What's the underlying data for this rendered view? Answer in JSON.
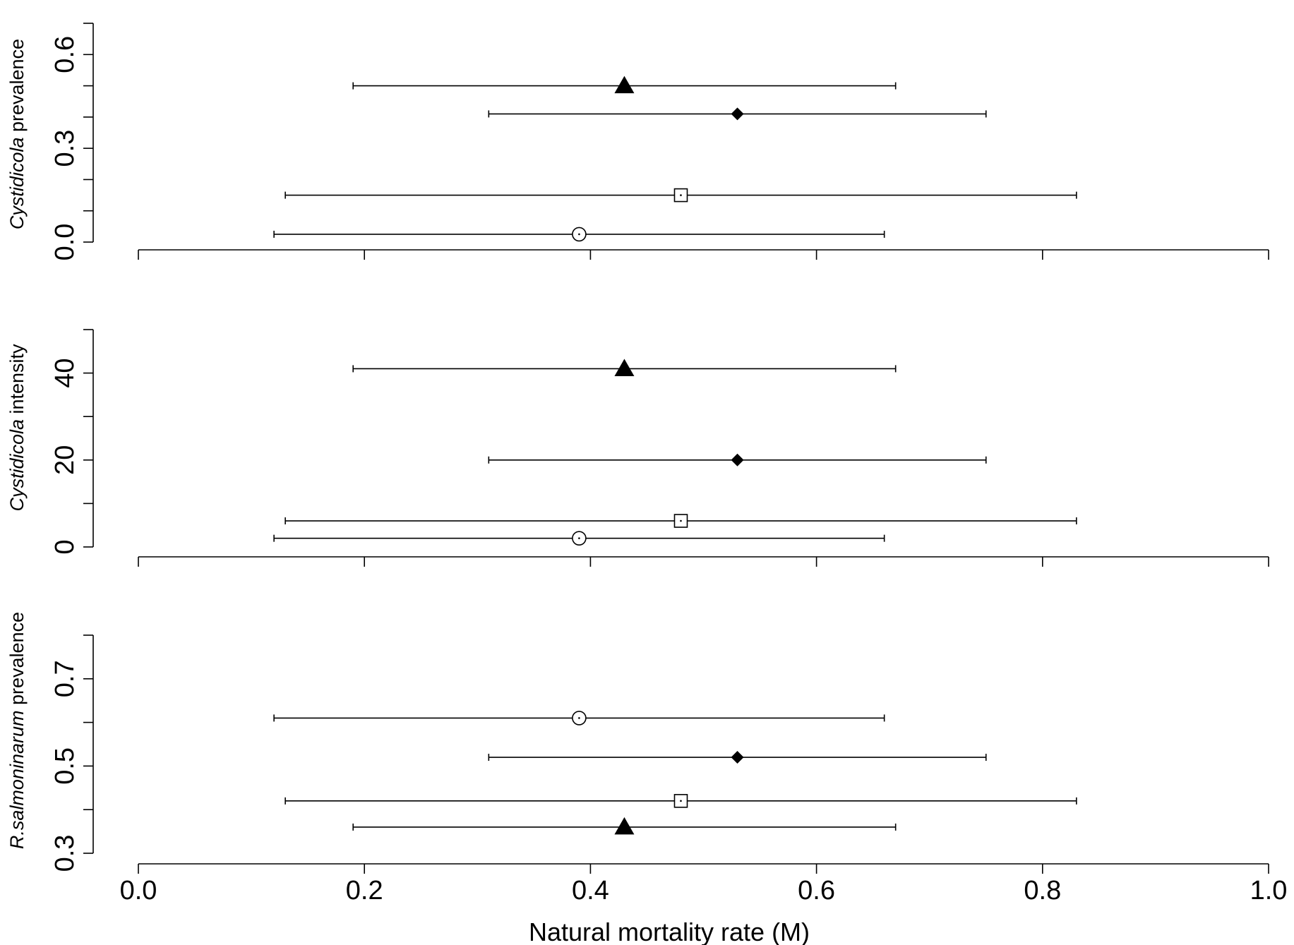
{
  "chart_data": {
    "type": "scatter",
    "xlabel": "Natural mortality rate (M)",
    "xlim": [
      0,
      1
    ],
    "x_ticks": [
      0.0,
      0.2,
      0.4,
      0.6,
      0.8,
      1.0
    ],
    "x_tick_labels": [
      "0.0",
      "0.2",
      "0.4",
      "0.6",
      "0.8",
      "1.0"
    ],
    "panels": [
      {
        "ylabel_italic": "Cystidicola",
        "ylabel_rest": " prevalence",
        "ylim": [
          0,
          0.7
        ],
        "y_ticks": [
          0.0,
          0.3,
          0.6
        ],
        "y_tick_labels": [
          "0.0",
          "0.3",
          "0.6"
        ],
        "y_minor_ticks": [
          0.1,
          0.2,
          0.4,
          0.5,
          0.7
        ],
        "points": [
          {
            "marker": "triangle",
            "x": 0.43,
            "xmin": 0.19,
            "xmax": 0.67,
            "y": 0.5
          },
          {
            "marker": "diamond",
            "x": 0.53,
            "xmin": 0.31,
            "xmax": 0.75,
            "y": 0.41
          },
          {
            "marker": "square",
            "x": 0.48,
            "xmin": 0.13,
            "xmax": 0.83,
            "y": 0.15
          },
          {
            "marker": "circle",
            "x": 0.39,
            "xmin": 0.12,
            "xmax": 0.66,
            "y": 0.025
          }
        ]
      },
      {
        "ylabel_italic": "Cystidicola",
        "ylabel_rest": " intensity",
        "ylim": [
          0,
          50
        ],
        "y_ticks": [
          0,
          20,
          40
        ],
        "y_tick_labels": [
          "0",
          "20",
          "40"
        ],
        "y_minor_ticks": [
          10,
          30,
          50
        ],
        "points": [
          {
            "marker": "triangle",
            "x": 0.43,
            "xmin": 0.19,
            "xmax": 0.67,
            "y": 41
          },
          {
            "marker": "diamond",
            "x": 0.53,
            "xmin": 0.31,
            "xmax": 0.75,
            "y": 20
          },
          {
            "marker": "square",
            "x": 0.48,
            "xmin": 0.13,
            "xmax": 0.83,
            "y": 6
          },
          {
            "marker": "circle",
            "x": 0.39,
            "xmin": 0.12,
            "xmax": 0.66,
            "y": 2
          }
        ]
      },
      {
        "ylabel_italic": "R.salmoninarum",
        "ylabel_rest": " prevalence",
        "ylim": [
          0.3,
          0.8
        ],
        "y_ticks": [
          0.3,
          0.5,
          0.7
        ],
        "y_tick_labels": [
          "0.3",
          "0.5",
          "0.7"
        ],
        "y_minor_ticks": [
          0.4,
          0.6,
          0.8
        ],
        "points": [
          {
            "marker": "circle",
            "x": 0.39,
            "xmin": 0.12,
            "xmax": 0.66,
            "y": 0.61
          },
          {
            "marker": "diamond",
            "x": 0.53,
            "xmin": 0.31,
            "xmax": 0.75,
            "y": 0.52
          },
          {
            "marker": "square",
            "x": 0.48,
            "xmin": 0.13,
            "xmax": 0.83,
            "y": 0.42
          },
          {
            "marker": "triangle",
            "x": 0.43,
            "xmin": 0.19,
            "xmax": 0.67,
            "y": 0.36
          }
        ]
      }
    ]
  }
}
